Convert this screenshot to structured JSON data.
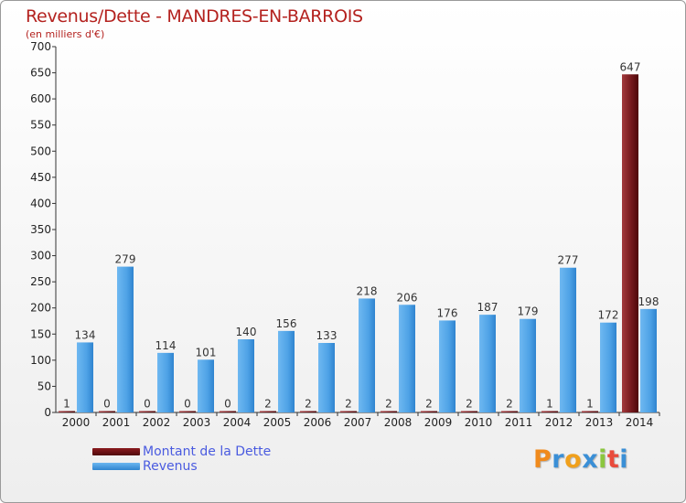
{
  "header": {
    "title": "Revenus/Dette - MANDRES-EN-BARROIS",
    "subtitle": "(en milliers d'€)"
  },
  "logo": {
    "text": "Proxiti"
  },
  "colors": {
    "dette": "#6b0f12",
    "revenus": "#4ea2e6",
    "title": "#b4221f",
    "legend_text": "#4a5be0"
  },
  "legend": {
    "items": [
      {
        "label": "Montant de la Dette",
        "color": "#6b0f12"
      },
      {
        "label": "Revenus",
        "color": "#4ea2e6"
      }
    ]
  },
  "chart_data": {
    "type": "bar",
    "title": "Revenus/Dette - MANDRES-EN-BARROIS",
    "subtitle": "(en milliers d'€)",
    "categories": [
      "2000",
      "2001",
      "2002",
      "2003",
      "2004",
      "2005",
      "2006",
      "2007",
      "2008",
      "2009",
      "2010",
      "2011",
      "2012",
      "2013",
      "2014"
    ],
    "series": [
      {
        "name": "Montant de la Dette",
        "values": [
          1,
          0,
          0,
          0,
          0,
          2,
          2,
          2,
          2,
          2,
          2,
          2,
          1,
          1,
          647
        ]
      },
      {
        "name": "Revenus",
        "values": [
          134,
          279,
          114,
          101,
          140,
          156,
          133,
          218,
          206,
          176,
          187,
          179,
          277,
          172,
          198
        ]
      }
    ],
    "ylim": [
      0,
      700
    ],
    "yticks": [
      0,
      50,
      100,
      150,
      200,
      250,
      300,
      350,
      400,
      450,
      500,
      550,
      600,
      650,
      700
    ],
    "grid": false,
    "legend": "bottom-left"
  }
}
